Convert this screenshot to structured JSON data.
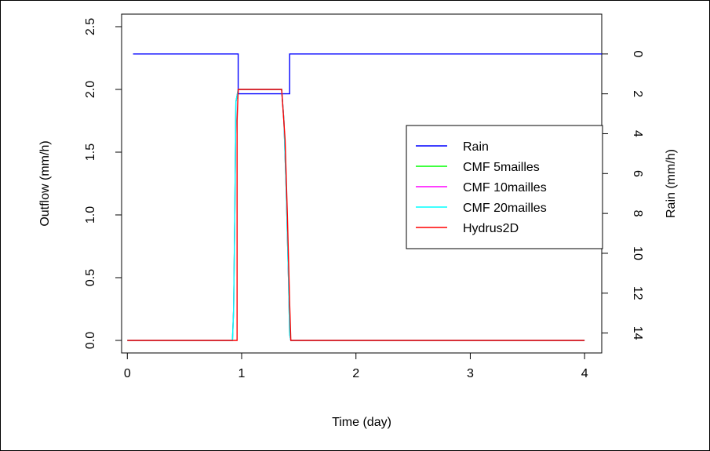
{
  "chart_data": {
    "type": "line",
    "title": "",
    "xlabel": "Time (day)",
    "ylabel": "Outflow (mm/h)",
    "y2label": "Rain (mm/h)",
    "xlim": [
      -0.05,
      4.15
    ],
    "ylim": [
      -0.1,
      2.6
    ],
    "y2lim": [
      15,
      -2
    ],
    "y2_reversed": true,
    "x_ticks": [
      "0",
      "1",
      "2",
      "3",
      "4"
    ],
    "y_ticks": [
      "0.0",
      "0.5",
      "1.0",
      "1.5",
      "2.0",
      "2.5"
    ],
    "y2_ticks": [
      "0",
      "2",
      "4",
      "6",
      "8",
      "10",
      "12",
      "14"
    ],
    "grid": false,
    "legend_position": "right",
    "colors": {
      "Rain": "#0000ff",
      "CMF 5mailles": "#00ff00",
      "CMF 10mailles": "#ff00ff",
      "CMF 20mailles": "#00ffff",
      "Hydrus2D": "#ff0000"
    },
    "series": [
      {
        "name": "Rain",
        "axis": "right",
        "step": true,
        "x": [
          0.05,
          0.97,
          0.97,
          1.42,
          1.42,
          4.15
        ],
        "y": [
          0,
          0,
          2,
          2,
          0,
          0
        ]
      },
      {
        "name": "CMF 5mailles",
        "axis": "left",
        "x": [
          0,
          0.92,
          0.93,
          0.94,
          0.95,
          0.97,
          1.0,
          1.35,
          1.37,
          1.39,
          1.41,
          1.42,
          1.43,
          4.0
        ],
        "y": [
          0,
          0,
          0.25,
          1.0,
          1.9,
          2.0,
          2.0,
          2.0,
          1.75,
          1.2,
          0.5,
          0.05,
          0,
          0
        ]
      },
      {
        "name": "CMF 10mailles",
        "axis": "left",
        "x": [
          0,
          0.92,
          0.93,
          0.94,
          0.95,
          0.97,
          1.0,
          1.35,
          1.37,
          1.39,
          1.41,
          1.42,
          1.43,
          4.0
        ],
        "y": [
          0,
          0,
          0.25,
          1.0,
          1.9,
          2.0,
          2.0,
          2.0,
          1.75,
          1.2,
          0.5,
          0.05,
          0,
          0
        ]
      },
      {
        "name": "CMF 20mailles",
        "axis": "left",
        "x": [
          0,
          0.92,
          0.93,
          0.94,
          0.95,
          0.97,
          1.0,
          1.35,
          1.37,
          1.39,
          1.41,
          1.42,
          1.43,
          4.0
        ],
        "y": [
          0,
          0,
          0.25,
          1.0,
          1.9,
          2.0,
          2.0,
          2.0,
          1.75,
          1.2,
          0.5,
          0.05,
          0,
          0
        ]
      },
      {
        "name": "Hydrus2D",
        "axis": "left",
        "x": [
          0,
          0.96,
          0.96,
          0.97,
          1.0,
          1.35,
          1.38,
          1.4,
          1.42,
          1.43,
          4.0
        ],
        "y": [
          0,
          0,
          1.75,
          2.0,
          2.0,
          2.0,
          1.6,
          1.0,
          0.3,
          0,
          0
        ]
      }
    ]
  }
}
